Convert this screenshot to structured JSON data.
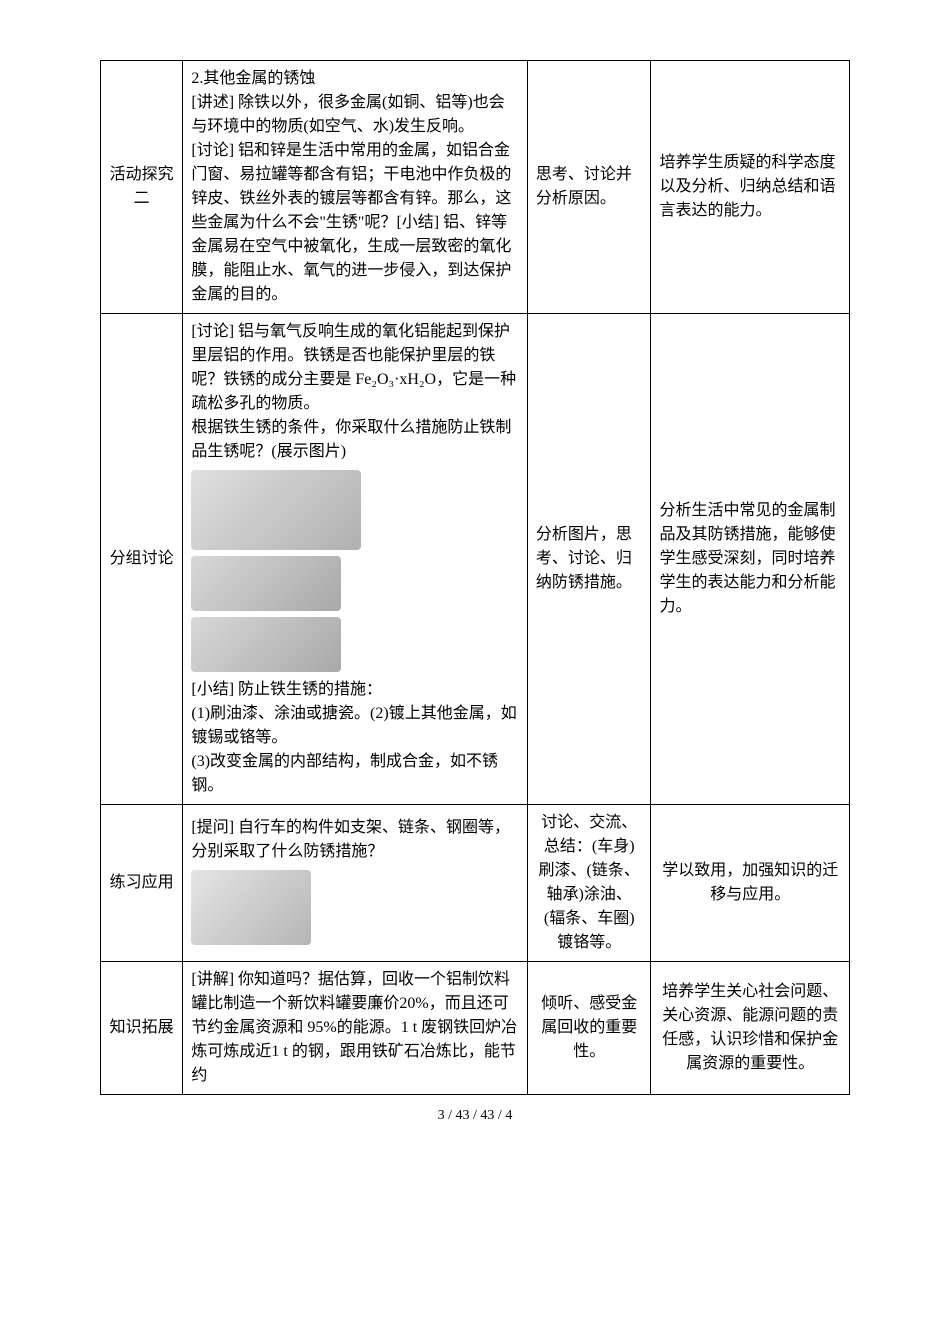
{
  "rows": [
    {
      "c1": "活动探究二",
      "c2": "2.其他金属的锈蚀\n[讲述] 除铁以外，很多金属(如铜、铝等)也会与环境中的物质(如空气、水)发生反响。\n[讨论] 铝和锌是生活中常用的金属，如铝合金门窗、易拉罐等都含有铝；干电池中作负极的锌皮、铁丝外表的镀层等都含有锌。那么，这些金属为什么不会\"生锈\"呢？[小结] 铝、锌等金属易在空气中被氧化，生成一层致密的氧化膜，能阻止水、氧气的进一步侵入，到达保护金属的目的。",
      "c3": "思考、讨论并分析原因。",
      "c4": "培养学生质疑的科学态度以及分析、归纳总结和语言表达的能力。"
    },
    {
      "c1": "分组讨论",
      "c2_pre": "[讨论] 铝与氧气反响生成的氧化铝能起到保护里层铝的作用。铁锈是否也能保护里层的铁呢？铁锈的成分主要是 Fe₂O₃·xH₂O，它是一种疏松多孔的物质。\n根据铁生锈的条件，你采取什么措施防止铁制品生锈呢？(展示图片)",
      "c2_post": "[小结] 防止铁生锈的措施：\n(1)刷油漆、涂油或搪瓷。(2)镀上其他金属，如镀锡或铬等。\n(3)改变金属的内部结构，制成合金，如不锈钢。",
      "c3": "分析图片，思考、讨论、归纳防锈措施。",
      "c4": "分析生活中常见的金属制品及其防锈措施，能够使学生感受深刻，同时培养学生的表达能力和分析能力。"
    },
    {
      "c1": "练习应用",
      "c2": "[提问] 自行车的构件如支架、链条、钢圈等，分别采取了什么防锈措施？",
      "c3": "讨论、交流、总结：(车身)刷漆、(链条、轴承)涂油、(辐条、车圈)镀铬等。",
      "c4": "学以致用，加强知识的迁移与应用。"
    },
    {
      "c1": "知识拓展",
      "c2": "[讲解] 你知道吗？据估算，回收一个铝制饮料罐比制造一个新饮料罐要廉价20%，而且还可节约金属资源和 95%的能源。1 t 废钢铁回炉冶炼可炼成近1 t 的钢，跟用铁矿石冶炼比，能节约",
      "c3": "倾听、感受金属回收的重要性。",
      "c4": "培养学生关心社会问题、关心资源、能源问题的责任感，认识珍惜和保护金属资源的重要性。"
    }
  ],
  "footer": "3 / 43 / 43 / 4"
}
